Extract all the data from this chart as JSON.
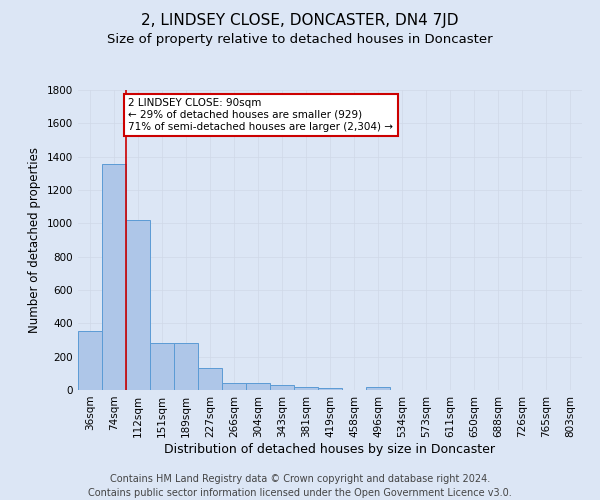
{
  "title": "2, LINDSEY CLOSE, DONCASTER, DN4 7JD",
  "subtitle": "Size of property relative to detached houses in Doncaster",
  "xlabel": "Distribution of detached houses by size in Doncaster",
  "ylabel": "Number of detached properties",
  "categories": [
    "36sqm",
    "74sqm",
    "112sqm",
    "151sqm",
    "189sqm",
    "227sqm",
    "266sqm",
    "304sqm",
    "343sqm",
    "381sqm",
    "419sqm",
    "458sqm",
    "496sqm",
    "534sqm",
    "573sqm",
    "611sqm",
    "650sqm",
    "688sqm",
    "726sqm",
    "765sqm",
    "803sqm"
  ],
  "values": [
    355,
    1355,
    1020,
    285,
    280,
    130,
    45,
    40,
    30,
    20,
    15,
    0,
    20,
    0,
    0,
    0,
    0,
    0,
    0,
    0,
    0
  ],
  "bar_color": "#aec6e8",
  "bar_edge_color": "#5b9bd5",
  "bar_edge_width": 0.7,
  "grid_color": "#d0d8e8",
  "background_color": "#dce6f5",
  "annotation_box_text": "2 LINDSEY CLOSE: 90sqm\n← 29% of detached houses are smaller (929)\n71% of semi-detached houses are larger (2,304) →",
  "annotation_box_color": "#ffffff",
  "annotation_box_edge_color": "#cc0000",
  "red_line_x": 1.5,
  "ylim": [
    0,
    1800
  ],
  "yticks": [
    0,
    200,
    400,
    600,
    800,
    1000,
    1200,
    1400,
    1600,
    1800
  ],
  "footnote": "Contains HM Land Registry data © Crown copyright and database right 2024.\nContains public sector information licensed under the Open Government Licence v3.0.",
  "footnote_fontsize": 7,
  "title_fontsize": 11,
  "subtitle_fontsize": 9.5,
  "xlabel_fontsize": 9,
  "ylabel_fontsize": 8.5,
  "tick_fontsize": 7.5,
  "annot_fontsize": 7.5
}
